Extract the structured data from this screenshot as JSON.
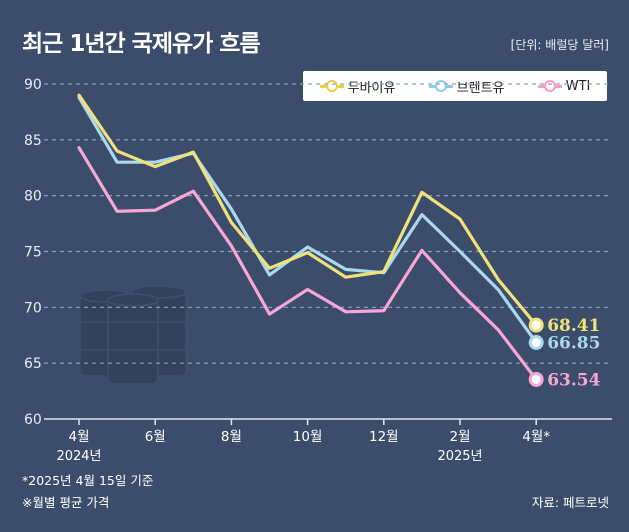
{
  "header": {
    "title": "최근 1년간 국제유가 흐름",
    "unit": "[단위: 배럴당 달러]"
  },
  "footer": {
    "note1": "*2025년 4월 15일 기준",
    "note2": "※월별 평균 가격",
    "source": "자료: 페트로넷"
  },
  "colors": {
    "dubai": "#f0e27a",
    "brent": "#a9d8f0",
    "wti": "#f7a7d6",
    "grid": "#8ea2bf",
    "axis": "#dfe6f0"
  },
  "chart_data": {
    "type": "line",
    "title": "최근 1년간 국제유가 흐름",
    "ylabel": "배럴당 달러",
    "ylim": [
      60,
      90
    ],
    "yticks": [
      60,
      65,
      70,
      75,
      80,
      85,
      90
    ],
    "grid": true,
    "legend": "top-right",
    "x": [
      "2024-04",
      "2024-05",
      "2024-06",
      "2024-07",
      "2024-08",
      "2024-09",
      "2024-10",
      "2024-11",
      "2024-12",
      "2025-01",
      "2025-02",
      "2025-03",
      "2025-04*"
    ],
    "x_ticks": [
      {
        "index": 0,
        "label": "4월",
        "year": "2024년"
      },
      {
        "index": 2,
        "label": "6월",
        "year": ""
      },
      {
        "index": 4,
        "label": "8월",
        "year": ""
      },
      {
        "index": 6,
        "label": "10월",
        "year": ""
      },
      {
        "index": 8,
        "label": "12월",
        "year": ""
      },
      {
        "index": 10,
        "label": "2월",
        "year": "2025년"
      },
      {
        "index": 12,
        "label": "4월*",
        "year": ""
      }
    ],
    "series": [
      {
        "name": "두바이유",
        "key": "dubai",
        "values": [
          89.0,
          84.0,
          82.6,
          83.9,
          77.6,
          73.5,
          74.9,
          72.7,
          73.2,
          80.3,
          77.9,
          72.5,
          68.41
        ],
        "end_label": "68.41"
      },
      {
        "name": "브렌트유",
        "key": "brent",
        "values": [
          88.8,
          83.0,
          83.0,
          83.8,
          78.8,
          72.9,
          75.4,
          73.4,
          73.1,
          78.3,
          75.0,
          71.6,
          66.85
        ],
        "end_label": "66.85"
      },
      {
        "name": "WTI",
        "key": "wti",
        "values": [
          84.3,
          78.6,
          78.7,
          80.4,
          75.5,
          69.4,
          71.6,
          69.6,
          69.7,
          75.1,
          71.3,
          68.0,
          63.54
        ],
        "end_label": "63.54"
      }
    ]
  }
}
